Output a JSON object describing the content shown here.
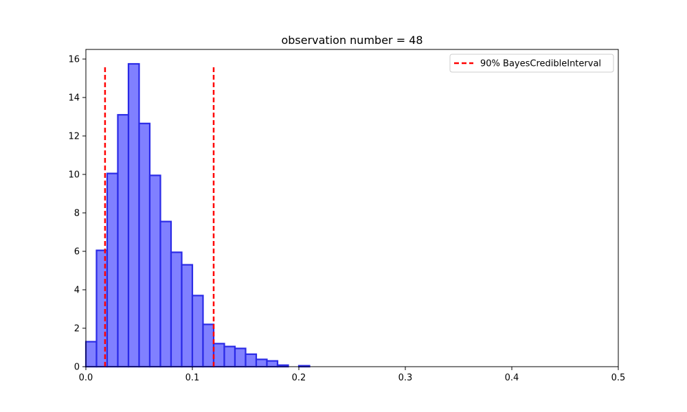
{
  "chart_data": {
    "type": "bar",
    "title": "observation number = 48",
    "xlabel": "",
    "ylabel": "",
    "xlim": [
      0.0,
      0.5
    ],
    "ylim": [
      0,
      16.5
    ],
    "xticks": [
      0.0,
      0.1,
      0.2,
      0.3,
      0.4,
      0.5
    ],
    "xtick_labels": [
      "0.0",
      "0.1",
      "0.2",
      "0.3",
      "0.4",
      "0.5"
    ],
    "yticks": [
      0,
      2,
      4,
      6,
      8,
      10,
      12,
      14,
      16
    ],
    "ytick_labels": [
      "0",
      "2",
      "4",
      "6",
      "8",
      "10",
      "12",
      "14",
      "16"
    ],
    "grid": false,
    "legend_position": "top-right",
    "colors": {
      "bar_fill": "#8080ff",
      "bar_edge": "#2a2ae6",
      "interval_line": "#ff0000"
    },
    "bins": {
      "edges": [
        0.0,
        0.01,
        0.02,
        0.03,
        0.04,
        0.05,
        0.06,
        0.07,
        0.08,
        0.09,
        0.1,
        0.11,
        0.12,
        0.13,
        0.14,
        0.15,
        0.16,
        0.17,
        0.18,
        0.19,
        0.2,
        0.21
      ],
      "values": [
        1.3,
        6.05,
        10.05,
        13.1,
        15.75,
        12.65,
        9.95,
        7.55,
        5.95,
        5.3,
        3.7,
        2.2,
        1.2,
        1.05,
        0.95,
        0.65,
        0.38,
        0.3,
        0.08,
        0.0,
        0.05
      ]
    },
    "series": [
      {
        "name": "90% BayesCredibleInterval",
        "type": "vline",
        "x": [
          0.018,
          0.12
        ],
        "ymax": 15.65,
        "style": "dashed"
      }
    ]
  }
}
